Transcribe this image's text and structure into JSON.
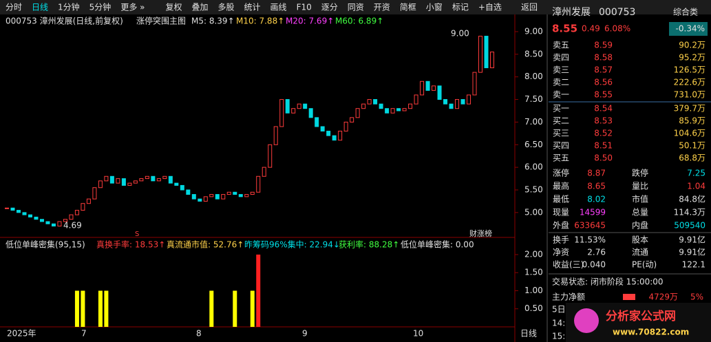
{
  "toolbar": [
    "分时",
    "日线",
    "1分钟",
    "5分钟",
    "更多 »",
    "复权",
    "叠加",
    "多股",
    "统计",
    "画线",
    "F10",
    "逐分",
    "同资",
    "开资",
    "简框",
    "小窗",
    "标记",
    "+自选",
    "返回"
  ],
  "chart": {
    "title": "000753 漳州发展(日线,前复权)",
    "indicator_name": "涨停突围主图",
    "ma_labels": [
      "M5: 8.39↑",
      "M10: 7.88↑",
      "M20: 7.69↑",
      "M60: 6.89↑"
    ],
    "ylim": [
      4.45,
      9.38
    ],
    "yticks": [
      {
        "value": 5,
        "label": "5.00"
      },
      {
        "value": 5.5,
        "label": "5.50"
      },
      {
        "value": 6,
        "label": "6.00"
      },
      {
        "value": 6.5,
        "label": "6.50"
      },
      {
        "value": 7,
        "label": "7.00"
      },
      {
        "value": 7.5,
        "label": "7.50"
      },
      {
        "value": 8,
        "label": "8.00"
      },
      {
        "value": 8.5,
        "label": "8.50"
      },
      {
        "value": 9,
        "label": "9.00"
      }
    ],
    "closes": [
      5.1,
      5.05,
      5.0,
      4.95,
      4.9,
      4.85,
      4.8,
      4.75,
      4.7,
      4.8,
      4.85,
      4.95,
      5.05,
      5.2,
      5.3,
      5.55,
      5.7,
      5.8,
      5.65,
      5.75,
      5.6,
      5.65,
      5.7,
      5.75,
      5.8,
      5.7,
      5.75,
      5.8,
      5.65,
      5.6,
      5.5,
      5.4,
      5.3,
      5.25,
      5.35,
      5.4,
      5.3,
      5.4,
      5.45,
      5.4,
      5.35,
      5.4,
      5.45,
      5.8,
      6.0,
      6.5,
      6.9,
      7.5,
      7.2,
      7.3,
      7.4,
      7.3,
      7.1,
      6.9,
      6.8,
      6.7,
      6.6,
      6.8,
      7.0,
      7.1,
      7.3,
      7.4,
      7.5,
      7.4,
      7.3,
      7.2,
      7.3,
      7.25,
      7.3,
      7.4,
      7.6,
      7.9,
      7.7,
      7.8,
      7.5,
      7.4,
      7.3,
      7.5,
      7.4,
      7.6,
      8.1,
      8.9,
      8.2,
      8.55
    ],
    "up_color": "#ff3c3c",
    "down_color": "#00d8e0",
    "high_label": "9.00",
    "low_label": "4.69",
    "marker_s": "S",
    "marker_list": "财涨榜",
    "x_labels": [
      "2025年",
      "7",
      "8",
      "9",
      "10",
      "日线"
    ]
  },
  "indicator": {
    "title": "低位单峰密集(95,15)",
    "readouts": [
      "真换手率: 18.53↑",
      "真流通市值: 52.76↑",
      "昨筹码96%集中: 22.94↓",
      "获利率: 88.28↑",
      "低位单峰密集: 0.00"
    ],
    "ylim": [
      0,
      2.38
    ],
    "yticks": [
      {
        "value": 0.5,
        "label": "0.50"
      },
      {
        "value": 1,
        "label": "1.00"
      },
      {
        "value": 1.5,
        "label": "1.50"
      },
      {
        "value": 2,
        "label": "2.00"
      }
    ],
    "values_a": [
      null,
      null,
      null,
      null,
      null,
      null,
      null,
      null,
      null,
      null,
      null,
      null,
      1,
      1,
      null,
      null,
      1,
      1,
      null,
      null,
      null,
      null,
      null,
      null,
      null,
      null,
      null,
      null,
      null,
      null,
      null,
      null,
      null,
      null,
      null,
      1,
      null,
      null,
      null,
      1,
      null,
      null,
      1,
      null,
      null,
      null,
      null,
      null,
      null,
      null,
      null,
      null,
      null,
      null,
      null,
      null,
      null,
      null,
      null,
      null,
      null,
      null,
      null,
      null,
      null,
      null,
      null,
      null,
      null,
      null,
      null,
      null,
      null,
      null,
      null,
      null,
      null,
      null,
      null,
      null,
      null,
      null,
      null,
      null
    ],
    "color_a": "#ffff00",
    "values_b": [
      null,
      null,
      null,
      null,
      null,
      null,
      null,
      null,
      null,
      null,
      null,
      null,
      null,
      null,
      null,
      null,
      null,
      null,
      null,
      null,
      null,
      null,
      null,
      null,
      null,
      null,
      null,
      null,
      null,
      null,
      null,
      null,
      null,
      null,
      null,
      null,
      null,
      null,
      null,
      null,
      null,
      null,
      null,
      2,
      null,
      null,
      null,
      null,
      null,
      null,
      null,
      null,
      null,
      null,
      null,
      null,
      null,
      null,
      null,
      null,
      null,
      null,
      null,
      null,
      null,
      null,
      null,
      null,
      null,
      null,
      null,
      null,
      null,
      null,
      null,
      null,
      null,
      null,
      null,
      null,
      null,
      null,
      null,
      null
    ],
    "color_b": "#ff2020"
  },
  "quote": {
    "name": "漳州发展",
    "code": "000753",
    "sector": "综合类",
    "price": "8.55",
    "change": "0.49",
    "pct": "6.08%",
    "sector_pct": "-0.34%",
    "sell": [
      {
        "label": "卖五",
        "price": "8.59",
        "volume": "90.2万"
      },
      {
        "label": "卖四",
        "price": "8.58",
        "volume": "95.2万"
      },
      {
        "label": "卖三",
        "price": "8.57",
        "volume": "126.5万"
      },
      {
        "label": "卖二",
        "price": "8.56",
        "volume": "222.6万"
      },
      {
        "label": "卖一",
        "price": "8.55",
        "volume": "731.0万"
      }
    ],
    "buy": [
      {
        "label": "买一",
        "price": "8.54",
        "volume": "379.7万"
      },
      {
        "label": "买二",
        "price": "8.53",
        "volume": "85.9万"
      },
      {
        "label": "买三",
        "price": "8.52",
        "volume": "104.6万"
      },
      {
        "label": "买四",
        "price": "8.51",
        "volume": "50.1万"
      },
      {
        "label": "买五",
        "price": "8.50",
        "volume": "68.8万"
      }
    ],
    "stats": [
      [
        "涨停",
        "8.87",
        "跌停",
        "7.25"
      ],
      [
        "最高",
        "8.65",
        "量比",
        "1.04"
      ],
      [
        "最低",
        "8.02",
        "市值",
        "84.8亿"
      ],
      [
        "现量",
        "14599",
        "总量",
        "114.3万"
      ],
      [
        "外盘",
        "633645",
        "内盘",
        "509540"
      ],
      [
        "换手",
        "11.53%",
        "股本",
        "9.91亿"
      ],
      [
        "净资",
        "2.76",
        "流通",
        "9.91亿"
      ],
      [
        "收益(三)",
        "0.040",
        "PE(动)",
        "122.1"
      ]
    ],
    "status": "交易状态: 闭市阶段 15:00:00",
    "main_net_label": "主力净额",
    "main_net": "4729万",
    "main_net_pct": "5%",
    "days5": "5日",
    "t14": "14:",
    "t15": "15:"
  },
  "watermark": {
    "name": "分析家公式网",
    "url": "www.70822.com"
  }
}
